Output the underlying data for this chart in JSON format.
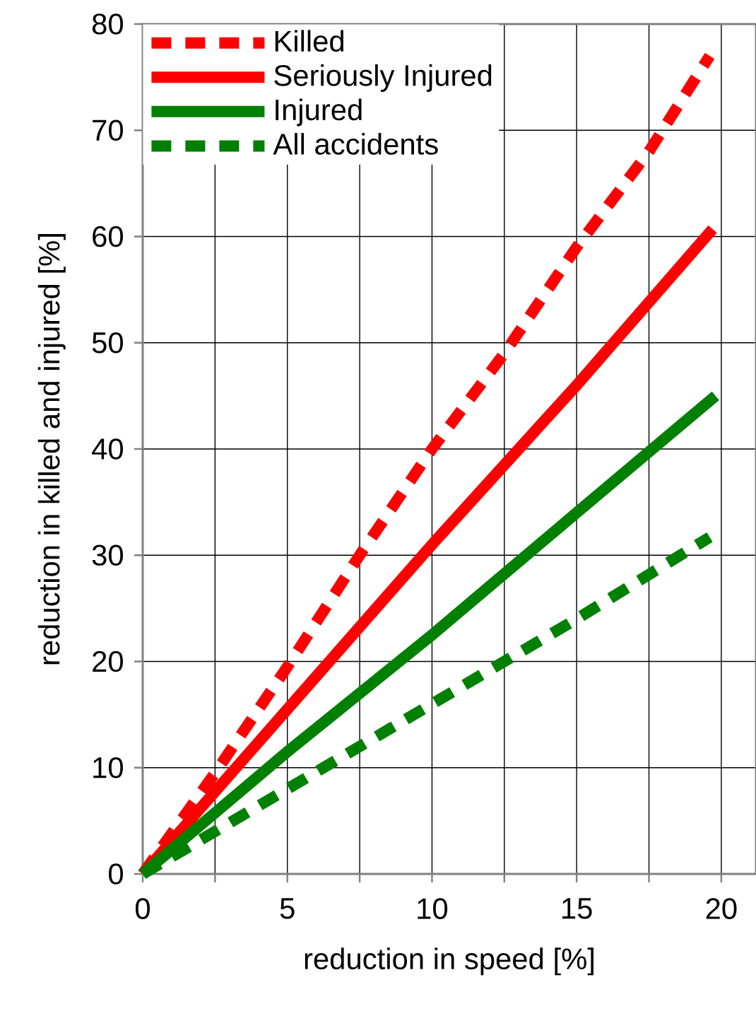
{
  "chart_data": {
    "type": "line",
    "xlabel": "reduction in speed [%]",
    "ylabel": "reduction in killed and injured [%]",
    "xlim": [
      0,
      21.2
    ],
    "ylim": [
      0,
      80
    ],
    "xticks": [
      0,
      {
        "value": 2.5,
        "label": null
      },
      5,
      {
        "value": 7.5,
        "label": null
      },
      10,
      {
        "value": 12.5,
        "label": null
      },
      15,
      {
        "value": 17.5,
        "label": null
      },
      20
    ],
    "yticks": [
      0,
      10,
      20,
      30,
      40,
      50,
      60,
      70,
      80
    ],
    "grid": true,
    "legend": "top left",
    "series": [
      {
        "name": "Killed",
        "color": "#ff0000",
        "line_style": "dashed",
        "x": [
          0,
          2.5,
          5,
          7.5,
          10,
          12.5,
          15,
          17.5,
          19.6
        ],
        "values": [
          0,
          9.5,
          19.5,
          30,
          40,
          49,
          59,
          68,
          77
        ]
      },
      {
        "name": "Seriously Injured",
        "color": "#ff0000",
        "line_style": "solid",
        "x": [
          0,
          5,
          10,
          15,
          19.7
        ],
        "values": [
          0,
          15.5,
          31,
          46,
          60.7
        ]
      },
      {
        "name": "Injured",
        "color": "#008000",
        "line_style": "solid",
        "x": [
          0,
          5,
          10,
          15,
          19.8
        ],
        "values": [
          0,
          11.5,
          22.5,
          34,
          45
        ]
      },
      {
        "name": "All accidents",
        "color": "#008000",
        "line_style": "dashed",
        "x": [
          0,
          2.5,
          5,
          10,
          15,
          19.6
        ],
        "values": [
          0,
          4,
          8,
          16,
          24,
          31.7
        ]
      }
    ]
  }
}
